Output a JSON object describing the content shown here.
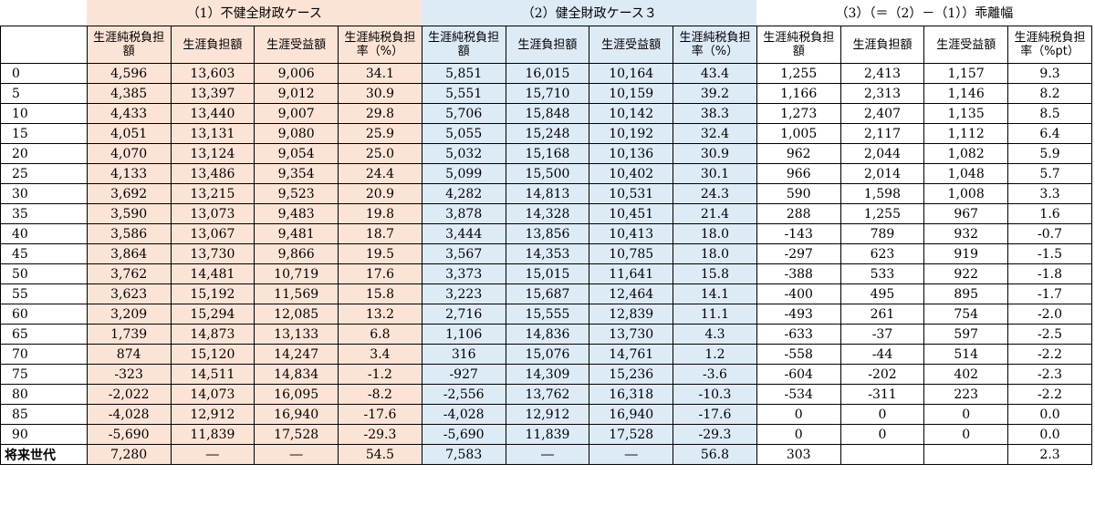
{
  "groups": [
    {
      "label": "（1）不健全財政ケース",
      "color": "#fbe4d6"
    },
    {
      "label": "（2）健全財政ケース３",
      "color": "#ddebf7"
    },
    {
      "label": "（3）（＝（2）－（1））乖離幅",
      "color": "#ffffff"
    }
  ],
  "headers": [
    [
      "生涯純税負担額",
      "生涯負担額",
      "生涯受益額",
      "生涯純税負担率（%）"
    ],
    [
      "生涯純税負担額",
      "生涯負担額",
      "生涯受益額",
      "生涯純税負担率（%）"
    ],
    [
      "生涯純税負担額",
      "生涯負担額",
      "生涯受益額",
      "生涯純税負担率（%pt）"
    ]
  ],
  "rows": [
    {
      "label": "0",
      "values": [
        "4,596",
        "13,603",
        "9,006",
        "34.1",
        "5,851",
        "16,015",
        "10,164",
        "43.4",
        "1,255",
        "2,413",
        "1,157",
        "9.3"
      ]
    },
    {
      "label": "5",
      "values": [
        "4,385",
        "13,397",
        "9,012",
        "30.9",
        "5,551",
        "15,710",
        "10,159",
        "39.2",
        "1,166",
        "2,313",
        "1,146",
        "8.2"
      ]
    },
    {
      "label": "10",
      "values": [
        "4,433",
        "13,440",
        "9,007",
        "29.8",
        "5,706",
        "15,848",
        "10,142",
        "38.3",
        "1,273",
        "2,407",
        "1,135",
        "8.5"
      ]
    },
    {
      "label": "15",
      "values": [
        "4,051",
        "13,131",
        "9,080",
        "25.9",
        "5,055",
        "15,248",
        "10,192",
        "32.4",
        "1,005",
        "2,117",
        "1,112",
        "6.4"
      ]
    },
    {
      "label": "20",
      "values": [
        "4,070",
        "13,124",
        "9,054",
        "25.0",
        "5,032",
        "15,168",
        "10,136",
        "30.9",
        "962",
        "2,044",
        "1,082",
        "5.9"
      ]
    },
    {
      "label": "25",
      "values": [
        "4,133",
        "13,486",
        "9,354",
        "24.4",
        "5,099",
        "15,500",
        "10,402",
        "30.1",
        "966",
        "2,014",
        "1,048",
        "5.7"
      ]
    },
    {
      "label": "30",
      "values": [
        "3,692",
        "13,215",
        "9,523",
        "20.9",
        "4,282",
        "14,813",
        "10,531",
        "24.3",
        "590",
        "1,598",
        "1,008",
        "3.3"
      ]
    },
    {
      "label": "35",
      "values": [
        "3,590",
        "13,073",
        "9,483",
        "19.8",
        "3,878",
        "14,328",
        "10,451",
        "21.4",
        "288",
        "1,255",
        "967",
        "1.6"
      ]
    },
    {
      "label": "40",
      "values": [
        "3,586",
        "13,067",
        "9,481",
        "18.7",
        "3,444",
        "13,856",
        "10,413",
        "18.0",
        "-143",
        "789",
        "932",
        "-0.7"
      ]
    },
    {
      "label": "45",
      "values": [
        "3,864",
        "13,730",
        "9,866",
        "19.5",
        "3,567",
        "14,353",
        "10,785",
        "18.0",
        "-297",
        "623",
        "919",
        "-1.5"
      ]
    },
    {
      "label": "50",
      "values": [
        "3,762",
        "14,481",
        "10,719",
        "17.6",
        "3,373",
        "15,015",
        "11,641",
        "15.8",
        "-388",
        "533",
        "922",
        "-1.8"
      ]
    },
    {
      "label": "55",
      "values": [
        "3,623",
        "15,192",
        "11,569",
        "15.8",
        "3,223",
        "15,687",
        "12,464",
        "14.1",
        "-400",
        "495",
        "895",
        "-1.7"
      ]
    },
    {
      "label": "60",
      "values": [
        "3,209",
        "15,294",
        "12,085",
        "13.2",
        "2,716",
        "15,555",
        "12,839",
        "11.1",
        "-493",
        "261",
        "754",
        "-2.0"
      ]
    },
    {
      "label": "65",
      "values": [
        "1,739",
        "14,873",
        "13,133",
        "6.8",
        "1,106",
        "14,836",
        "13,730",
        "4.3",
        "-633",
        "-37",
        "597",
        "-2.5"
      ]
    },
    {
      "label": "70",
      "values": [
        "874",
        "15,120",
        "14,247",
        "3.4",
        "316",
        "15,076",
        "14,761",
        "1.2",
        "-558",
        "-44",
        "514",
        "-2.2"
      ]
    },
    {
      "label": "75",
      "values": [
        "-323",
        "14,511",
        "14,834",
        "-1.2",
        "-927",
        "14,309",
        "15,236",
        "-3.6",
        "-604",
        "-202",
        "402",
        "-2.3"
      ]
    },
    {
      "label": "80",
      "values": [
        "-2,022",
        "14,073",
        "16,095",
        "-8.2",
        "-2,556",
        "13,762",
        "16,318",
        "-10.3",
        "-534",
        "-311",
        "223",
        "-2.2"
      ]
    },
    {
      "label": "85",
      "values": [
        "-4,028",
        "12,912",
        "16,940",
        "-17.6",
        "-4,028",
        "12,912",
        "16,940",
        "-17.6",
        "0",
        "0",
        "0",
        "0.0"
      ]
    },
    {
      "label": "90",
      "values": [
        "-5,690",
        "11,839",
        "17,528",
        "-29.3",
        "-5,690",
        "11,839",
        "17,528",
        "-29.3",
        "0",
        "0",
        "0",
        "0.0"
      ]
    },
    {
      "label": "将来世代",
      "values": [
        "7,280",
        "―",
        "―",
        "54.5",
        "7,583",
        "―",
        "―",
        "56.8",
        "303",
        "",
        "",
        "2.3"
      ]
    }
  ]
}
